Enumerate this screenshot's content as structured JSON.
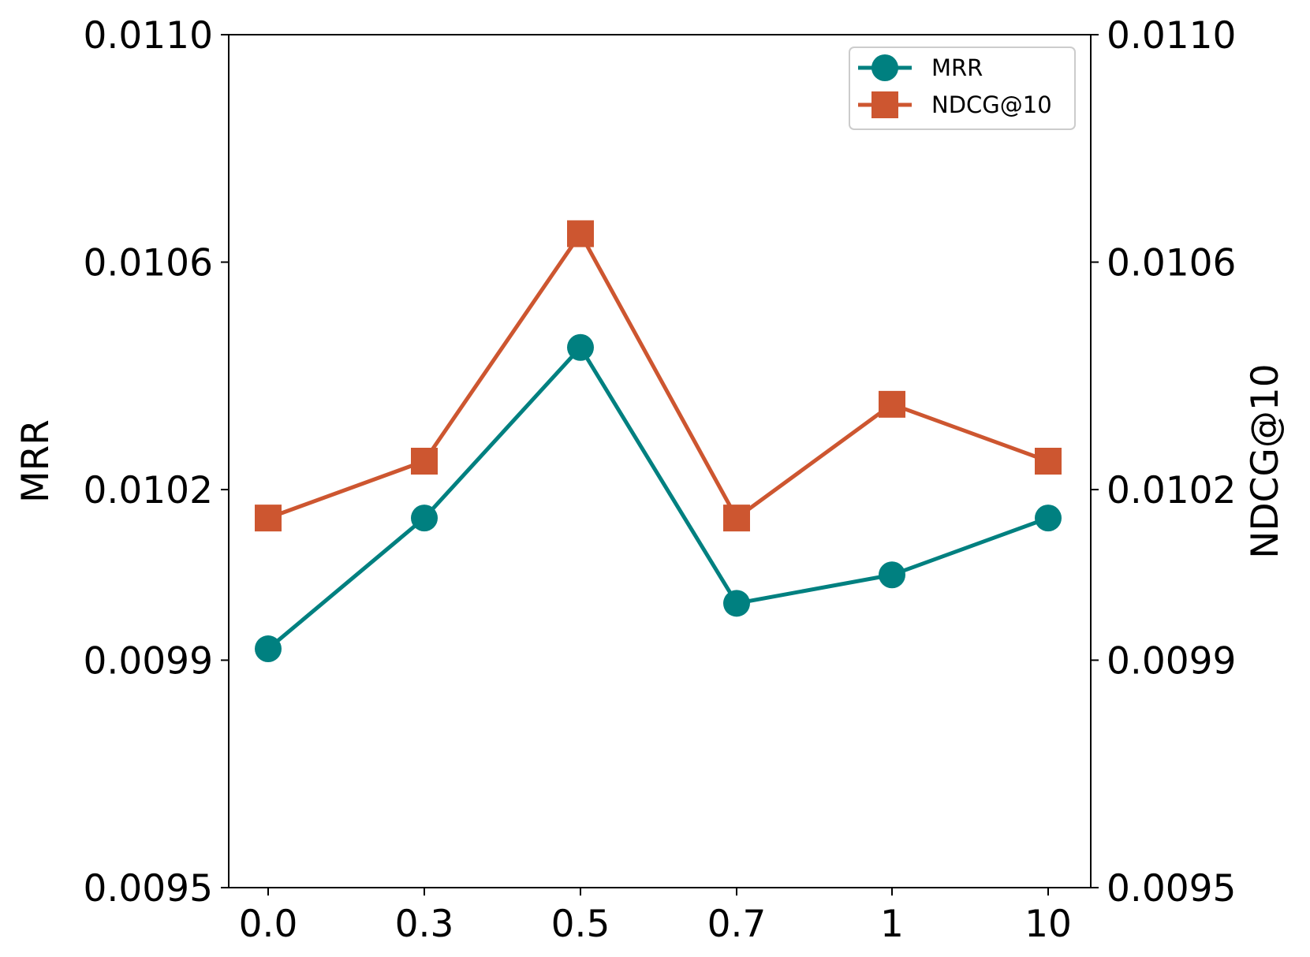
{
  "chart_data": {
    "type": "line",
    "categories": [
      "0.0",
      "0.3",
      "0.5",
      "0.7",
      "1",
      "10"
    ],
    "series": [
      {
        "name": "MRR",
        "axis": "left",
        "marker": "circle",
        "color": "#008080",
        "values": [
          0.00992,
          0.01015,
          0.01045,
          0.01,
          0.01005,
          0.01015
        ]
      },
      {
        "name": "NDCG@10",
        "axis": "right",
        "marker": "square",
        "color": "#CD5630",
        "values": [
          0.01015,
          0.01025,
          0.01065,
          0.01015,
          0.01035,
          0.01025
        ]
      }
    ],
    "ylabel": "MRR",
    "y2label": "NDCG@10",
    "ylim": [
      0.0095,
      0.011
    ],
    "y2lim": [
      0.0095,
      0.011
    ],
    "yticks": [
      0.0095,
      0.0099,
      0.0102,
      0.0106,
      0.011
    ],
    "ytick_labels": [
      "0.0095",
      "0.0099",
      "0.0102",
      "0.0106",
      "0.0110"
    ],
    "y2ticks": [
      0.0095,
      0.0099,
      0.0102,
      0.0106,
      0.011
    ],
    "y2tick_labels": [
      "0.0095",
      "0.0099",
      "0.0102",
      "0.0106",
      "0.0110"
    ],
    "grid": false,
    "legend": "top-right"
  }
}
